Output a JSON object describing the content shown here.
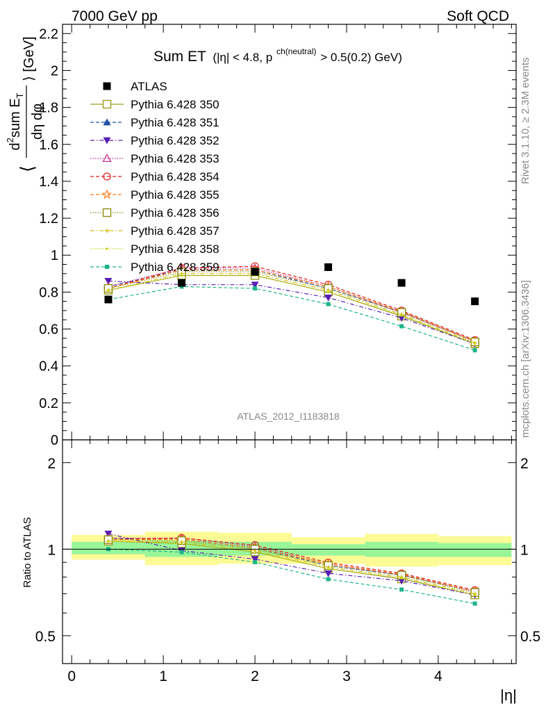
{
  "header": {
    "left": "7000 GeV pp",
    "right": "Soft QCD"
  },
  "side_labels": {
    "rivet": "Rivet 3.1.10, ≥ 2.3M events",
    "mcplots": "mcplots.cern.ch [arXiv:1306.3436]"
  },
  "watermark": "ATLAS_2012_I1183818",
  "colors": {
    "data": "#000000",
    "band_inner": "#99f599",
    "band_outer": "#fcfb95"
  },
  "chart_data": [
    {
      "type": "line",
      "title_main": "Sum ET",
      "title_sub_1": "(|η| < 4.8, p",
      "title_sup": "ch(neutral)",
      "title_sub_2": " > 0.5(0.2) GeV)",
      "ylabel_bracket_open": "⟨",
      "ylabel_num_d": "d",
      "ylabel_num_sup": "2",
      "ylabel_num_rest": "sum E",
      "ylabel_num_sub": "T",
      "ylabel_den": "dη dφ",
      "ylabel_bracket_close": "⟩ [GeV]",
      "xlim": [
        -0.1,
        4.85
      ],
      "ylim": [
        0,
        2.25
      ],
      "yticks": [
        "0",
        "0.2",
        "0.4",
        "0.6",
        "0.8",
        "1",
        "1.2",
        "1.4",
        "1.6",
        "1.8",
        "2",
        "2.2"
      ],
      "x": [
        0.4,
        1.2,
        2.0,
        2.8,
        3.6,
        4.4
      ],
      "data_series": {
        "name": "ATLAS",
        "values": [
          0.76,
          0.85,
          0.91,
          0.935,
          0.85,
          0.75
        ]
      },
      "series": [
        {
          "name": "Pythia 6.428 350",
          "color": "#9c9c1c",
          "marker": "square-open",
          "dash": "solid",
          "values": [
            0.81,
            0.89,
            0.89,
            0.8,
            0.67,
            0.52
          ]
        },
        {
          "name": "Pythia 6.428 351",
          "color": "#1e4fa8",
          "marker": "triangle-up",
          "dash": "dashed",
          "values": [
            0.83,
            0.92,
            0.92,
            0.82,
            0.69,
            0.535
          ]
        },
        {
          "name": "Pythia 6.428 352",
          "color": "#5a1eb4",
          "marker": "triangle-down",
          "dash": "dashdot",
          "values": [
            0.86,
            0.84,
            0.84,
            0.77,
            0.66,
            0.52
          ]
        },
        {
          "name": "Pythia 6.428 353",
          "color": "#c8288c",
          "marker": "triangle-open",
          "dash": "dotted",
          "values": [
            0.83,
            0.93,
            0.93,
            0.83,
            0.69,
            0.535
          ]
        },
        {
          "name": "Pythia 6.428 354",
          "color": "#e01e1e",
          "marker": "circle-open",
          "dash": "dashed",
          "values": [
            0.82,
            0.93,
            0.94,
            0.84,
            0.7,
            0.54
          ]
        },
        {
          "name": "Pythia 6.428 355",
          "color": "#ff7814",
          "marker": "star-open",
          "dash": "dashed",
          "values": [
            0.82,
            0.92,
            0.92,
            0.83,
            0.695,
            0.535
          ]
        },
        {
          "name": "Pythia 6.428 356",
          "color": "#8c8c14",
          "marker": "square-open",
          "dash": "dotted",
          "values": [
            0.82,
            0.91,
            0.91,
            0.82,
            0.69,
            0.53
          ]
        },
        {
          "name": "Pythia 6.428 357",
          "color": "#d2be14",
          "marker": "small-cross",
          "dash": "dashdot",
          "values": [
            0.81,
            0.9,
            0.9,
            0.81,
            0.68,
            0.525
          ]
        },
        {
          "name": "Pythia 6.428 358",
          "color": "#c8d214",
          "marker": "small-dot",
          "dash": "dotted",
          "values": [
            0.81,
            0.89,
            0.89,
            0.8,
            0.675,
            0.52
          ]
        },
        {
          "name": "Pythia 6.428 359",
          "color": "#1eb48c",
          "marker": "small-square",
          "dash": "dashed",
          "values": [
            0.76,
            0.83,
            0.82,
            0.735,
            0.615,
            0.485
          ]
        }
      ]
    },
    {
      "type": "line",
      "ylabel": "Ratio to ATLAS",
      "xlabel": "|η|",
      "log_y": true,
      "ylim": [
        0.4,
        2.4
      ],
      "ytick_labels": [
        {
          "v": 0.5,
          "label": "0.5"
        },
        {
          "v": 1,
          "label": "1"
        },
        {
          "v": 2,
          "label": "2"
        }
      ],
      "xtick_labels": [
        "0",
        "1",
        "2",
        "3",
        "4"
      ],
      "bins": [
        {
          "lo": 0.0,
          "hi": 0.8,
          "inner": [
            0.96,
            1.06
          ],
          "outer": [
            0.92,
            1.12
          ]
        },
        {
          "lo": 0.8,
          "hi": 1.6,
          "inner": [
            0.94,
            1.07
          ],
          "outer": [
            0.88,
            1.15
          ]
        },
        {
          "lo": 1.6,
          "hi": 2.4,
          "inner": [
            0.95,
            1.06
          ],
          "outer": [
            0.89,
            1.14
          ]
        },
        {
          "lo": 2.4,
          "hi": 3.2,
          "inner": [
            0.95,
            1.04
          ],
          "outer": [
            0.89,
            1.1
          ]
        },
        {
          "lo": 3.2,
          "hi": 4.0,
          "inner": [
            0.94,
            1.06
          ],
          "outer": [
            0.87,
            1.13
          ]
        },
        {
          "lo": 4.0,
          "hi": 4.8,
          "inner": [
            0.94,
            1.05
          ],
          "outer": [
            0.88,
            1.11
          ]
        }
      ]
    }
  ]
}
